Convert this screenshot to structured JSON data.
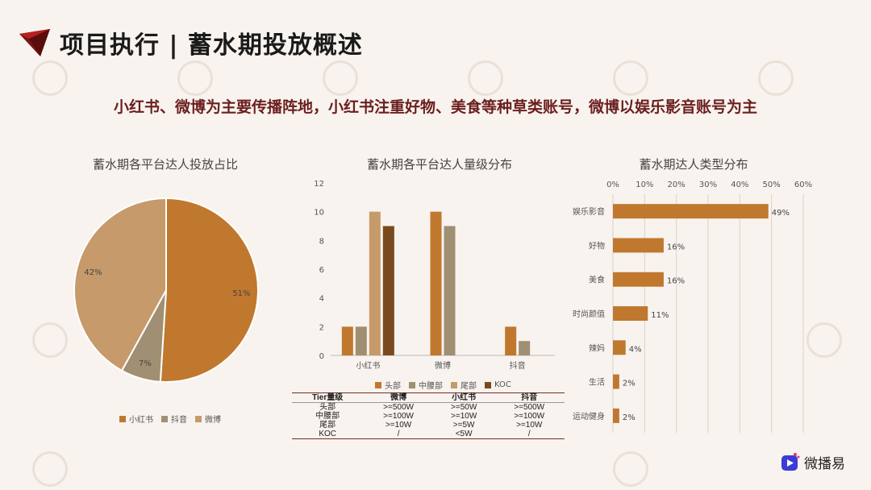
{
  "header": {
    "title": "项目执行 | 蓄水期投放概述",
    "subtitle": "小红书、微博为主要传播阵地，小红书注重好物、美食等种草类账号，微博以娱乐影音账号为主"
  },
  "colors": {
    "xiaohongshu": "#c0782e",
    "douyin": "#a08f72",
    "weibo": "#c69a6a",
    "head": "#c0782e",
    "mid": "#a08f72",
    "tail": "#c69a6a",
    "koc": "#7a4a1e",
    "type_bar": "#c0782e"
  },
  "chart_data": [
    {
      "type": "pie",
      "title": "蓄水期各平台达人投放占比",
      "labels": [
        "小红书",
        "抖音",
        "微博"
      ],
      "values": [
        51,
        7,
        42
      ],
      "value_labels": [
        "51%",
        "7%",
        "42%"
      ],
      "legend": "bottom"
    },
    {
      "type": "bar",
      "title": "蓄水期各平台达人量级分布",
      "categories": [
        "小红书",
        "微博",
        "抖音"
      ],
      "series": [
        {
          "name": "头部",
          "values": [
            2,
            10,
            2
          ]
        },
        {
          "name": "中腰部",
          "values": [
            2,
            9,
            1
          ]
        },
        {
          "name": "尾部",
          "values": [
            10,
            0,
            0
          ]
        },
        {
          "name": "KOC",
          "values": [
            9,
            0,
            0
          ]
        }
      ],
      "ylim": [
        0,
        12
      ],
      "yticks": [
        "0",
        "2",
        "4",
        "6",
        "8",
        "10",
        "12"
      ],
      "legend": "bottom"
    },
    {
      "type": "bar",
      "orientation": "horizontal",
      "title": "蓄水期达人类型分布",
      "categories": [
        "娱乐影音",
        "好物",
        "美食",
        "时尚颜值",
        "辣妈",
        "生活",
        "运动健身"
      ],
      "values": [
        49,
        16,
        16,
        11,
        4,
        2,
        2
      ],
      "value_labels": [
        "49%",
        "16%",
        "16%",
        "11%",
        "4%",
        "2%",
        "2%"
      ],
      "xlim": [
        0,
        60
      ],
      "xticks": [
        "0%",
        "10%",
        "20%",
        "30%",
        "40%",
        "50%",
        "60%"
      ]
    }
  ],
  "tier_table": {
    "headers": [
      "Tier量级",
      "微博",
      "小红书",
      "抖音"
    ],
    "rows": [
      [
        "头部",
        ">=500W",
        ">=50W",
        ">=500W"
      ],
      [
        "中腰部",
        ">=100W",
        ">=10W",
        ">=100W"
      ],
      [
        "尾部",
        ">=10W",
        ">=5W",
        ">=10W"
      ],
      [
        "KOC",
        "/",
        "<5W",
        "/"
      ]
    ]
  },
  "brand": {
    "name": "微播易"
  }
}
